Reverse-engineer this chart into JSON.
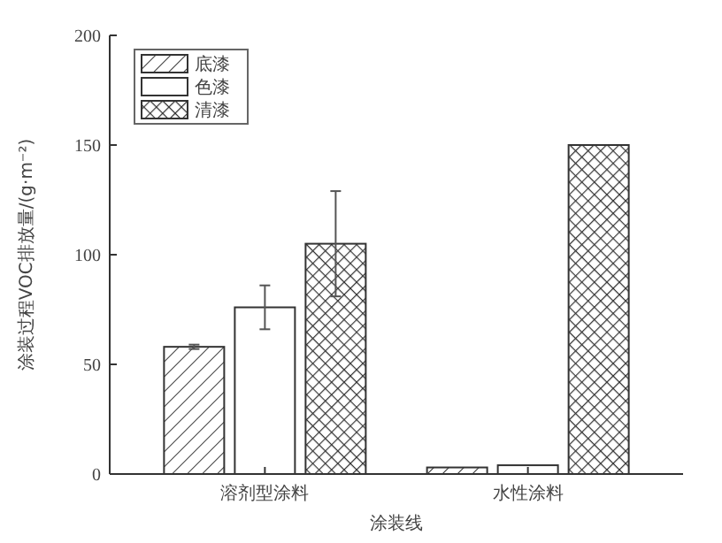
{
  "chart_data": {
    "type": "bar",
    "xlabel": "涂装线",
    "ylabel": "涂装过程VOC排放量/(g·m⁻²)",
    "categories": [
      "溶剂型涂料",
      "水性涂料"
    ],
    "series": [
      {
        "name": "底漆",
        "color": "#333333",
        "values": [
          58,
          3
        ],
        "errors": [
          1,
          null
        ]
      },
      {
        "name": "色漆",
        "color": "#ffffff",
        "values": [
          76,
          4
        ],
        "errors": [
          10,
          null
        ]
      },
      {
        "name": "清漆",
        "color": "#333333",
        "values": [
          105,
          150
        ],
        "errors": [
          24,
          null
        ]
      }
    ],
    "ylim": [
      0,
      200
    ],
    "yticks": [
      0,
      50,
      100,
      150,
      200
    ],
    "grid": false,
    "legend": "top left"
  }
}
